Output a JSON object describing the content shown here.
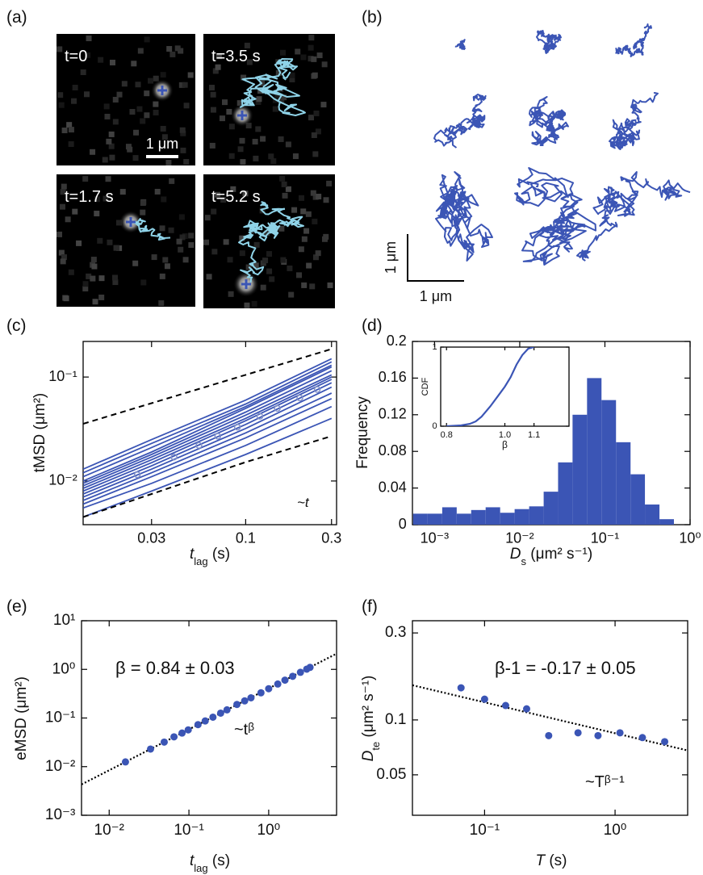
{
  "panel_labels": [
    "(a)",
    "(b)",
    "(c)",
    "(d)",
    "(e)",
    "(f)"
  ],
  "panel_a": {
    "frame_labels": [
      "t=0",
      "t=3.5 s",
      "t=1.7 s",
      "t=5.2 s"
    ],
    "scale_bar": "1 μm"
  },
  "panel_b": {
    "scale_bar_y": "1 μm",
    "scale_bar_x": "1 μm"
  },
  "chart_data": [
    {
      "type": "line",
      "log_x": true,
      "log_y": true,
      "xlim": [
        0.0125,
        0.32
      ],
      "ylim": [
        0.0038,
        0.22
      ],
      "xticks": [
        0.03,
        0.1,
        0.3
      ],
      "yticks": [
        {
          "value": 0.01,
          "label": "10⁻²"
        },
        {
          "value": 0.1,
          "label": "10⁻¹"
        }
      ],
      "xlabel": {
        "main": "t",
        "sub": "lag",
        "rest": " (s)"
      },
      "ylabel": "tMSD (μm²)",
      "annotation": "~t",
      "x": [
        0.0125,
        0.03,
        0.1,
        0.3
      ],
      "series": [
        {
          "color": "#3b55b5",
          "values": [
            0.013,
            0.025,
            0.06,
            0.15
          ]
        },
        {
          "color": "#3b55b5",
          "values": [
            0.012,
            0.023,
            0.055,
            0.14
          ]
        },
        {
          "color": "#3b55b5",
          "values": [
            0.011,
            0.021,
            0.052,
            0.13
          ]
        },
        {
          "color": "#3b55b5",
          "values": [
            0.01,
            0.019,
            0.05,
            0.125
          ]
        },
        {
          "color": "#3b55b5",
          "values": [
            0.0095,
            0.018,
            0.046,
            0.115
          ]
        },
        {
          "color": "#3b55b5",
          "values": [
            0.009,
            0.017,
            0.043,
            0.105
          ]
        },
        {
          "color": "#3b55b5",
          "values": [
            0.0085,
            0.016,
            0.04,
            0.1
          ]
        },
        {
          "color": "#3b55b5",
          "values": [
            0.008,
            0.015,
            0.038,
            0.095
          ]
        },
        {
          "color": "#3b55b5",
          "values": [
            0.0075,
            0.014,
            0.035,
            0.088
          ]
        },
        {
          "color": "#3b55b5",
          "values": [
            0.007,
            0.013,
            0.032,
            0.08
          ]
        },
        {
          "color": "#3b55b5",
          "values": [
            0.0065,
            0.012,
            0.029,
            0.07
          ]
        },
        {
          "color": "#3b55b5",
          "values": [
            0.006,
            0.011,
            0.026,
            0.062
          ]
        },
        {
          "color": "#3b55b5",
          "values": [
            0.0055,
            0.0095,
            0.022,
            0.052
          ]
        },
        {
          "color": "#3b55b5",
          "values": [
            0.0045,
            0.008,
            0.018,
            0.04
          ]
        },
        {
          "color": "#000000",
          "dash": true,
          "values": [
            0.0355,
            0.056,
            0.105,
            0.186
          ]
        },
        {
          "color": "#000000",
          "dash": true,
          "values": [
            0.0045,
            0.0075,
            0.0152,
            0.027
          ]
        },
        {
          "color": "#7f8fc8",
          "markers": true,
          "x": [
            0.025,
            0.04,
            0.055,
            0.07,
            0.09,
            0.12,
            0.15,
            0.2,
            0.25
          ],
          "values": [
            0.0115,
            0.017,
            0.022,
            0.027,
            0.033,
            0.042,
            0.05,
            0.063,
            0.076
          ]
        }
      ]
    },
    {
      "type": "histogram",
      "log_x": true,
      "xlim": [
        0.00055,
        1
      ],
      "ylim": [
        0,
        0.2
      ],
      "xticks": [
        {
          "value": 0.001,
          "label": "10⁻³"
        },
        {
          "value": 0.01,
          "label": "10⁻²"
        },
        {
          "value": 0.1,
          "label": "10⁻¹"
        },
        {
          "value": 1,
          "label": "10⁰"
        }
      ],
      "yticks": [
        0,
        0.04,
        0.08,
        0.12,
        0.16,
        0.2
      ],
      "xlabel": {
        "main": "D",
        "sub": "s",
        "rest": " (μm² s⁻¹)"
      },
      "ylabel": "Frequency",
      "color": "#3b55b5",
      "bins": [
        0.00056,
        0.00083,
        0.00123,
        0.00182,
        0.00269,
        0.00398,
        0.00589,
        0.00871,
        0.0129,
        0.0191,
        0.0282,
        0.0417,
        0.0617,
        0.0912,
        0.135,
        0.2,
        0.295,
        0.437,
        0.646
      ],
      "values": [
        0.012,
        0.012,
        0.019,
        0.012,
        0.016,
        0.019,
        0.013,
        0.017,
        0.02,
        0.036,
        0.068,
        0.12,
        0.16,
        0.136,
        0.09,
        0.055,
        0.022,
        0.006
      ],
      "inset": {
        "type": "line",
        "xlim": [
          0.78,
          1.22
        ],
        "ylim": [
          0,
          1
        ],
        "xticks": [
          0.8,
          {
            "value": 1,
            "label": "1.0"
          },
          1.1
        ],
        "yticks": [
          0,
          1
        ],
        "xlabel": "β",
        "ylabel": "CDF",
        "color": "#3b55b5",
        "x": [
          0.8,
          0.85,
          0.88,
          0.9,
          0.92,
          0.95,
          0.98,
          1.0,
          1.02,
          1.04,
          1.06,
          1.08,
          1.1
        ],
        "values": [
          0,
          0.01,
          0.03,
          0.06,
          0.12,
          0.25,
          0.4,
          0.5,
          0.62,
          0.78,
          0.9,
          0.98,
          1
        ]
      }
    },
    {
      "type": "scatter",
      "log_x": true,
      "log_y": true,
      "xlim": [
        0.0045,
        7.1
      ],
      "ylim": [
        0.001,
        10
      ],
      "xticks": [
        {
          "value": 0.01,
          "label": "10⁻²"
        },
        {
          "value": 0.1,
          "label": "10⁻¹"
        },
        {
          "value": 1,
          "label": "10⁰"
        }
      ],
      "yticks": [
        {
          "value": 0.001,
          "label": "10⁻³"
        },
        {
          "value": 0.01,
          "label": "10⁻²"
        },
        {
          "value": 0.1,
          "label": "10⁻¹"
        },
        {
          "value": 1,
          "label": "10⁰"
        },
        {
          "value": 10,
          "label": "10¹"
        }
      ],
      "xlabel": {
        "main": "t",
        "sub": "lag",
        "rest": " (s)"
      },
      "ylabel": "eMSD (μm²)",
      "annotations": [
        "β = 0.84 ± 0.03",
        "~tᵝ"
      ],
      "color": "#3b55b5",
      "x": [
        0.016,
        0.033,
        0.049,
        0.065,
        0.082,
        0.098,
        0.13,
        0.16,
        0.2,
        0.25,
        0.3,
        0.4,
        0.5,
        0.6,
        0.8,
        1.0,
        1.3,
        1.6,
        2.0,
        2.5,
        3.0,
        3.3
      ],
      "values": [
        0.0125,
        0.023,
        0.032,
        0.041,
        0.049,
        0.057,
        0.073,
        0.087,
        0.104,
        0.126,
        0.147,
        0.19,
        0.225,
        0.26,
        0.33,
        0.4,
        0.5,
        0.6,
        0.72,
        0.87,
        1.01,
        1.1
      ],
      "fit": {
        "x": [
          0.0045,
          7.1
        ],
        "values": [
          0.0043,
          2.1
        ]
      }
    },
    {
      "type": "scatter",
      "log_x": true,
      "log_y": true,
      "xlim": [
        0.028,
        3.6
      ],
      "ylim": [
        0.03,
        0.35
      ],
      "xticks": [
        {
          "value": 0.1,
          "label": "10⁻¹"
        },
        {
          "value": 1,
          "label": "10⁰"
        }
      ],
      "yticks": [
        0.05,
        0.1,
        0.3
      ],
      "xlabel": {
        "main": "T",
        "rest": " (s)"
      },
      "ylabel": {
        "main": "D",
        "sub": "te",
        "rest": " (μm² s⁻¹)"
      },
      "annotations": [
        "β-1 = -0.17 ± 0.05",
        "~Tᵝ⁻¹"
      ],
      "color": "#3b55b5",
      "x": [
        0.066,
        0.1,
        0.145,
        0.21,
        0.31,
        0.52,
        0.74,
        1.09,
        1.62,
        2.4
      ],
      "values": [
        0.15,
        0.13,
        0.12,
        0.115,
        0.082,
        0.085,
        0.082,
        0.085,
        0.08,
        0.076
      ],
      "fit": {
        "x": [
          0.028,
          3.6
        ],
        "values": [
          0.155,
          0.068
        ]
      }
    }
  ]
}
